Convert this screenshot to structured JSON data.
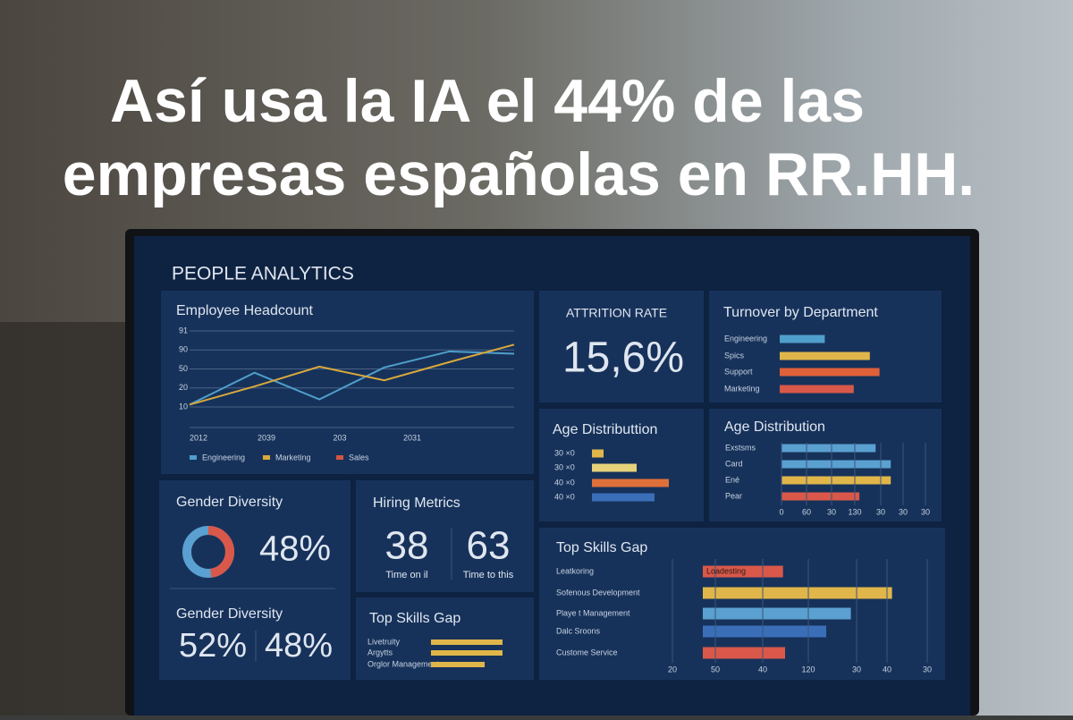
{
  "headline": {
    "line1": "Así usa la IA  el 44% de las",
    "line2": "empresas españolas en RR.HH."
  },
  "dashboard": {
    "title": "PEOPLE ANALYTICS",
    "headcount": {
      "title": "Employee Headcount",
      "ylim": [
        0,
        100
      ],
      "y_labels": [
        "91",
        "90",
        "50",
        "20",
        "10"
      ],
      "x_labels": [
        "2012",
        "2039",
        "203",
        "2031"
      ],
      "series": [
        {
          "name": "Engineering",
          "color": "#4f9fcc",
          "values": [
            3,
            45,
            10,
            52,
            73,
            70
          ]
        },
        {
          "name": "Marketing",
          "color": "#d9a93c",
          "values": [
            3,
            27,
            53,
            35,
            59,
            82
          ]
        },
        {
          "name": "Sales",
          "color": "#d2563f"
        }
      ]
    },
    "attrition": {
      "label": "ATTRITION RATE",
      "value": "15,6%"
    },
    "turnover": {
      "title": "Turnover by Department",
      "xlim": [
        0,
        100
      ],
      "rows": [
        {
          "label": "Engineering",
          "color": "#4f9fcc",
          "value": 42
        },
        {
          "label": "Spics",
          "color": "#e0b64a",
          "value": 84
        },
        {
          "label": "Support",
          "color": "#e0603a",
          "value": 93
        },
        {
          "label": "Marketing",
          "color": "#d9584a",
          "value": 69
        }
      ]
    },
    "age_a": {
      "title": "Age Distributtion",
      "xlim": [
        0,
        100
      ],
      "rows": [
        {
          "label": "30 ×0",
          "color": "#e0b64a",
          "value": 13
        },
        {
          "label": "30 ×0",
          "color": "#e6d27a",
          "value": 50
        },
        {
          "label": "40 ×0",
          "color": "#e0703a",
          "value": 86
        },
        {
          "label": "40 ×0",
          "color": "#3a6fb8",
          "value": 70
        }
      ]
    },
    "age_b": {
      "title": "Age Distribution",
      "xlim": [
        0,
        100
      ],
      "x_labels": [
        "0",
        "60",
        "30",
        "130",
        "30",
        "30",
        "30"
      ],
      "rows": [
        {
          "label": "Exstsms",
          "color": "#5aa0d0",
          "value": 81
        },
        {
          "label": "Card",
          "color": "#5aa0d0",
          "value": 94
        },
        {
          "label": "Ené",
          "color": "#e0b64a",
          "value": 94
        },
        {
          "label": "Pear",
          "color": "#d9584a",
          "value": 67
        }
      ]
    },
    "gender": {
      "title": "Gender Diversity",
      "donut": 48,
      "value_label": "48%",
      "title2": "Gender Diversity",
      "split": [
        "52%",
        "48%"
      ]
    },
    "hiring": {
      "title": "Hiring Metrics",
      "metrics": [
        {
          "value": "38",
          "label": "Time on il"
        },
        {
          "value": "63",
          "label": "Time to this"
        }
      ]
    },
    "skills_small": {
      "title": "Top Skills Gap",
      "xlim": [
        0,
        100
      ],
      "rows": [
        {
          "label": "Livetruity",
          "color": "#e0b64a",
          "value": 80
        },
        {
          "label": "Argytts",
          "color": "#e0b64a",
          "value": 80
        },
        {
          "label": "Orglor Management",
          "color": "#e0b64a",
          "value": 60
        }
      ]
    },
    "skills": {
      "title": "Top Skills Gap",
      "xlim": [
        0,
        100
      ],
      "bar_label": "Loadesting",
      "x_labels": [
        "20",
        "50",
        "40",
        "120",
        "30",
        "40",
        "30"
      ],
      "rows": [
        {
          "label": "Leatkoring",
          "color": "#d9584a",
          "value": 39
        },
        {
          "label": "Sofenous Development",
          "color": "#e0b64a",
          "value": 92
        },
        {
          "label": "Playe t Management",
          "color": "#5aa0d0",
          "value": 72
        },
        {
          "label": "Dalc Sroons",
          "color": "#3a6fb8",
          "value": 60
        },
        {
          "label": "Custome Service",
          "color": "#d9584a",
          "value": 40
        }
      ]
    }
  }
}
